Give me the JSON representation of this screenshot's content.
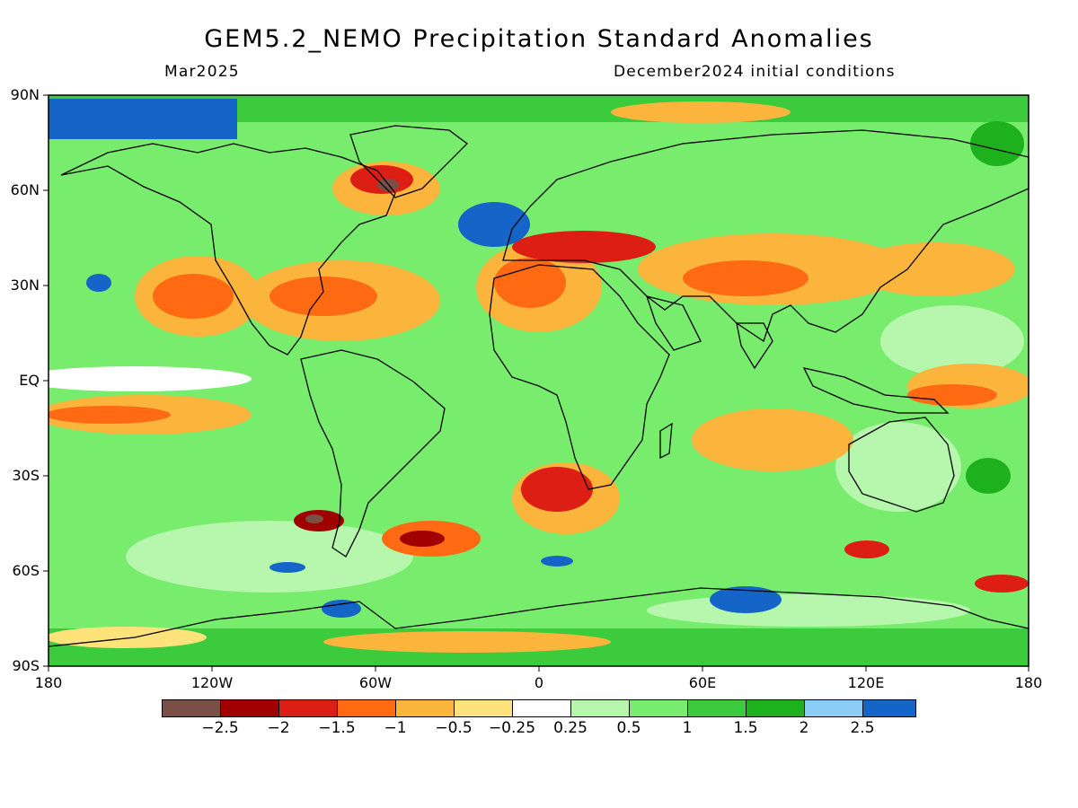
{
  "header": {
    "title": "GEM5.2_NEMO Precipitation Standard Anomalies",
    "valid_month": "Mar2025",
    "initial_conditions": "December2024 initial conditions"
  },
  "axes": {
    "latitude_labels": [
      "90N",
      "60N",
      "30N",
      "EQ",
      "30S",
      "60S",
      "90S"
    ],
    "longitude_labels": [
      "180",
      "120W",
      "60W",
      "0",
      "60E",
      "120E",
      "180"
    ]
  },
  "legend": {
    "colors": [
      "#7a4f45",
      "#a00000",
      "#dc1e14",
      "#ff6a12",
      "#fbb43c",
      "#fee27a",
      "#ffffff",
      "#b6f7ad",
      "#78ec6d",
      "#3ccb3c",
      "#1eb11e",
      "#8ccdf7",
      "#1565c8"
    ],
    "labels": [
      "−2.5",
      "−2",
      "−1.5",
      "−1",
      "−0.5",
      "−0.25",
      "0.25",
      "0.5",
      "1",
      "1.5",
      "2",
      "2.5"
    ]
  },
  "map_colors": {
    "ocean_base": "#78ec6d",
    "coastline": "#000000"
  }
}
